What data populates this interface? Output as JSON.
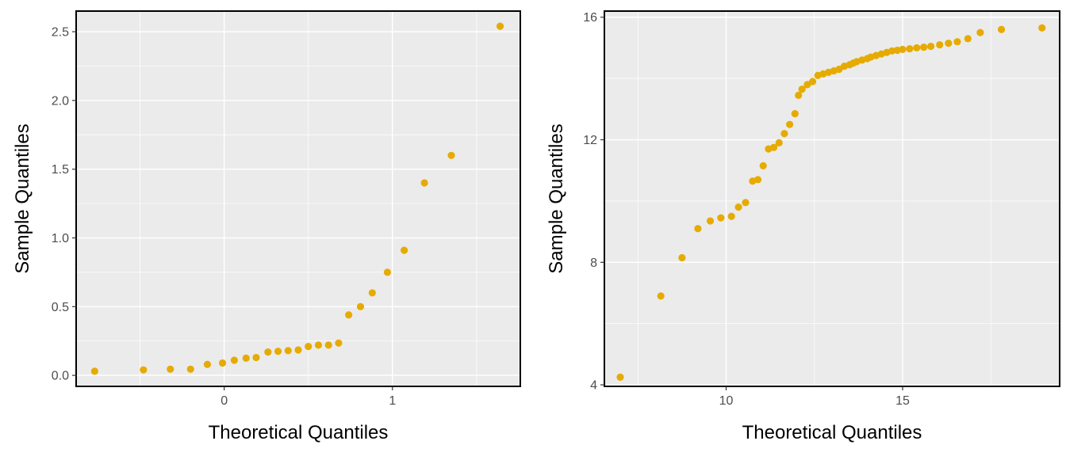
{
  "chart_data": [
    {
      "type": "scatter",
      "title": "",
      "xlabel": "Theoretical Quantiles",
      "ylabel": "Sample Quantiles",
      "xlim": [
        -0.88,
        1.76
      ],
      "ylim": [
        -0.08,
        2.65
      ],
      "x_ticks": [
        0,
        1
      ],
      "x_tick_labels": [
        "0",
        "1"
      ],
      "y_ticks": [
        0.0,
        0.5,
        1.0,
        1.5,
        2.0,
        2.5
      ],
      "y_tick_labels": [
        "0.0",
        "0.5",
        "1.0",
        "1.5",
        "2.0",
        "2.5"
      ],
      "grid": true,
      "point_color": "#E6AB02",
      "x": [
        -0.77,
        -0.48,
        -0.32,
        -0.2,
        -0.1,
        -0.01,
        0.06,
        0.13,
        0.19,
        0.26,
        0.32,
        0.38,
        0.44,
        0.5,
        0.56,
        0.62,
        0.68,
        0.74,
        0.81,
        0.88,
        0.97,
        1.07,
        1.19,
        1.35,
        1.64
      ],
      "y": [
        0.03,
        0.04,
        0.045,
        0.045,
        0.08,
        0.09,
        0.11,
        0.125,
        0.13,
        0.17,
        0.175,
        0.18,
        0.185,
        0.21,
        0.22,
        0.22,
        0.235,
        0.44,
        0.5,
        0.6,
        0.75,
        0.91,
        1.4,
        1.6,
        2.54
      ]
    },
    {
      "type": "scatter",
      "title": "",
      "xlabel": "Theoretical Quantiles",
      "ylabel": "Sample Quantiles",
      "xlim": [
        6.55,
        19.45
      ],
      "ylim": [
        3.95,
        16.2
      ],
      "x_ticks": [
        10,
        15
      ],
      "x_tick_labels": [
        "10",
        "15"
      ],
      "y_ticks": [
        4,
        8,
        12,
        16
      ],
      "y_tick_labels": [
        "4",
        "8",
        "12",
        "16"
      ],
      "grid": true,
      "point_color": "#E6AB02",
      "x": [
        7.0,
        8.15,
        8.75,
        9.2,
        9.55,
        9.85,
        10.15,
        10.35,
        10.55,
        10.75,
        10.9,
        11.05,
        11.2,
        11.35,
        11.5,
        11.65,
        11.8,
        11.95,
        12.05,
        12.15,
        12.3,
        12.45,
        12.6,
        12.75,
        12.9,
        13.05,
        13.2,
        13.35,
        13.5,
        13.6,
        13.7,
        13.85,
        14.0,
        14.1,
        14.25,
        14.4,
        14.55,
        14.7,
        14.85,
        15.0,
        15.2,
        15.4,
        15.6,
        15.8,
        16.05,
        16.3,
        16.55,
        16.85,
        17.2,
        17.8,
        18.95
      ],
      "y": [
        4.25,
        6.9,
        8.15,
        9.1,
        9.35,
        9.45,
        9.5,
        9.8,
        9.95,
        10.65,
        10.7,
        11.15,
        11.7,
        11.75,
        11.9,
        12.2,
        12.5,
        12.85,
        13.45,
        13.65,
        13.8,
        13.9,
        14.1,
        14.15,
        14.2,
        14.25,
        14.3,
        14.4,
        14.45,
        14.5,
        14.55,
        14.6,
        14.65,
        14.7,
        14.75,
        14.8,
        14.85,
        14.9,
        14.92,
        14.95,
        14.97,
        15.0,
        15.02,
        15.05,
        15.1,
        15.15,
        15.2,
        15.3,
        15.5,
        15.6,
        15.65
      ]
    }
  ]
}
